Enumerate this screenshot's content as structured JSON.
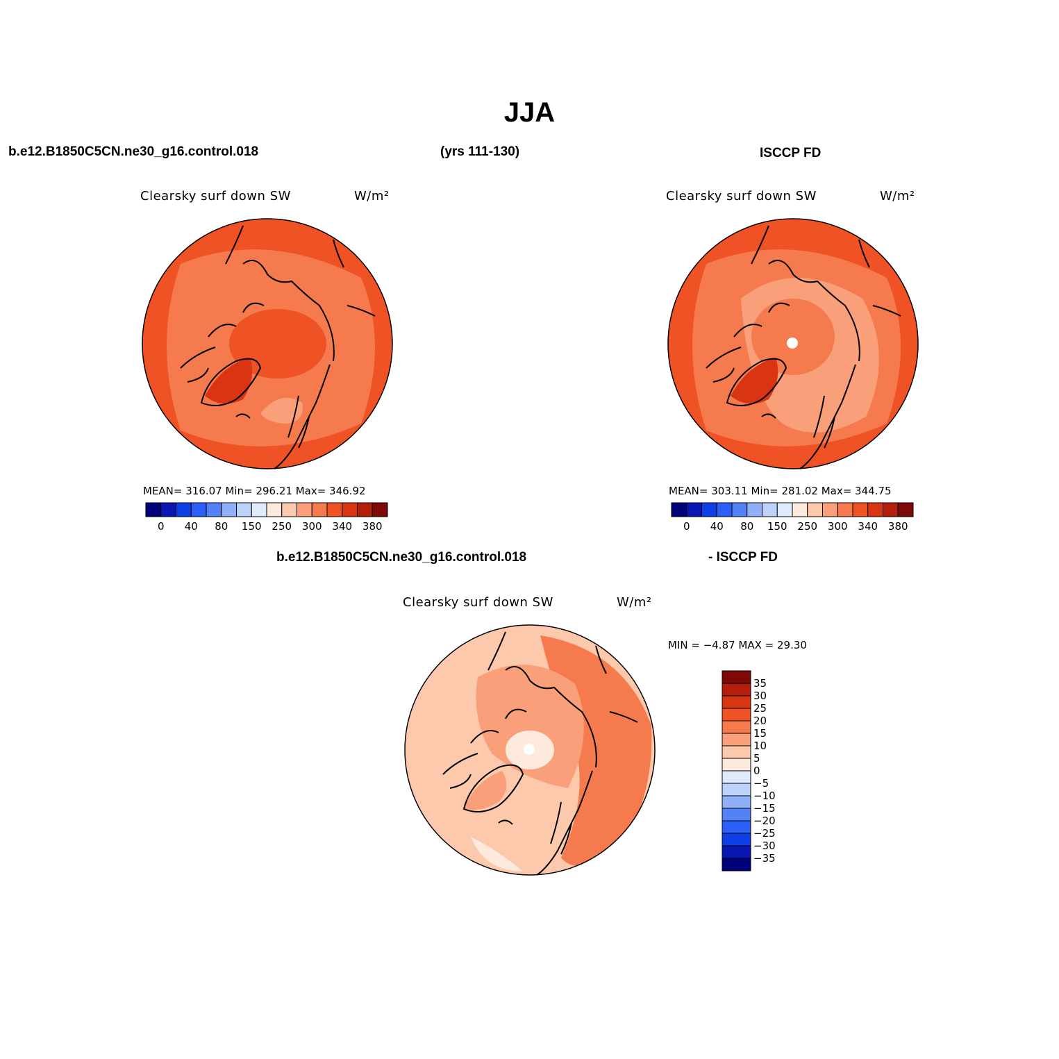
{
  "figure": {
    "title": "JJA",
    "case_name": "b.e12.B1850C5CN.ne30_g16.control.018",
    "years": "(yrs 111-130)",
    "obs_name": "ISCCP FD",
    "diff_case": "b.e12.B1850C5CN.ne30_g16.control.018",
    "diff_obs": "- ISCCP FD"
  },
  "panels": [
    {
      "id": "model",
      "variable": "Clearsky surf down SW",
      "units": "W/m²",
      "stats_text": "MEAN= 316.07   Min= 296.21   Max= 346.92",
      "mean": 316.07,
      "min": 296.21,
      "max": 346.92
    },
    {
      "id": "obs",
      "variable": "Clearsky surf down SW",
      "units": "W/m²",
      "stats_text": "MEAN= 303.11   Min= 281.02   Max= 344.75",
      "mean": 303.11,
      "min": 281.02,
      "max": 344.75
    },
    {
      "id": "diff",
      "variable": "Clearsky surf down SW",
      "units": "W/m²",
      "stats_text": "MIN =   −4.87 MAX =   29.30",
      "min": -4.87,
      "max": 29.3
    }
  ],
  "colorbar_abs": {
    "colors": [
      "#00007a",
      "#0a16b4",
      "#0f3fe6",
      "#2a60f8",
      "#5382f8",
      "#8fb0f8",
      "#bcd2fa",
      "#deebfc",
      "#fdeadc",
      "#fcc9ad",
      "#f9a07a",
      "#f57a4e",
      "#ef5224",
      "#d93512",
      "#b41e0c",
      "#7e0a08"
    ],
    "labels": [
      "0",
      "40",
      "80",
      "150",
      "250",
      "300",
      "340",
      "380"
    ]
  },
  "colorbar_diff": {
    "colors": [
      "#7e0a08",
      "#b41e0c",
      "#d93512",
      "#ef5224",
      "#f57a4e",
      "#f9a07a",
      "#fcc9ad",
      "#fdeadc",
      "#deebfc",
      "#bcd2fa",
      "#8fb0f8",
      "#5382f8",
      "#2a60f8",
      "#0f3fe6",
      "#0a16b4",
      "#00007a"
    ],
    "labels": [
      "35",
      "30",
      "25",
      "20",
      "15",
      "10",
      "5",
      "0",
      "−5",
      "−10",
      "−15",
      "−20",
      "−25",
      "−30",
      "−35"
    ]
  },
  "map_fill": {
    "model": {
      "base": "#f57a4e",
      "outer": "#ef5224",
      "inner_light": "#f9a07a",
      "greenland": "#d93512"
    },
    "obs": {
      "base": "#f57a4e",
      "outer": "#ef5224",
      "inner_light": "#f9a07a",
      "greenland": "#d93512",
      "pole": "#ffffff"
    },
    "diff": {
      "base": "#fcc9ad",
      "mid": "#f9a07a",
      "strong": "#f57a4e",
      "light": "#fdeadc",
      "pole": "#ffffff"
    }
  }
}
